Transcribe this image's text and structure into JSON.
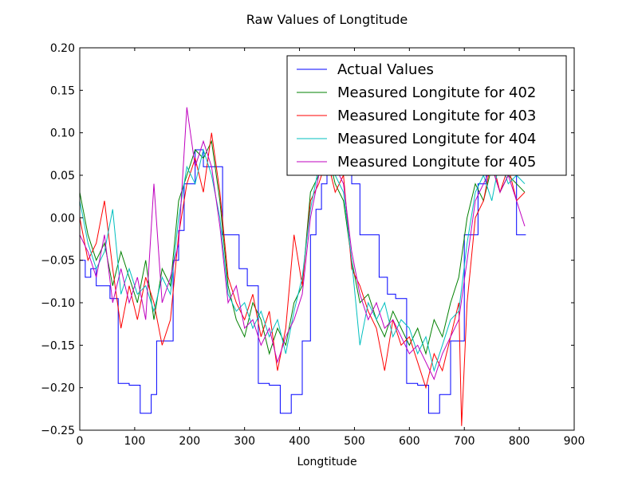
{
  "chart_data": {
    "type": "line",
    "title": "Raw Values of Longtitude",
    "xlabel": "Longtitude",
    "ylabel": "",
    "xlim": [
      0,
      900
    ],
    "ylim": [
      -0.25,
      0.2
    ],
    "xticks": [
      0,
      100,
      200,
      300,
      400,
      500,
      600,
      700,
      800,
      900
    ],
    "yticks": [
      -0.25,
      -0.2,
      -0.15,
      -0.1,
      -0.05,
      0.0,
      0.05,
      0.1,
      0.15,
      0.2
    ],
    "xtick_labels": [
      "0",
      "100",
      "200",
      "300",
      "400",
      "500",
      "600",
      "700",
      "800",
      "900"
    ],
    "ytick_labels": [
      "−0.25",
      "−0.20",
      "−0.15",
      "−0.10",
      "−0.05",
      "0.00",
      "0.05",
      "0.10",
      "0.15",
      "0.20"
    ],
    "grid": false,
    "legend_position": "top-right",
    "series": [
      {
        "name": "Actual Values",
        "color": "#0000ff",
        "style": "step",
        "x": [
          0,
          10,
          20,
          30,
          45,
          55,
          70,
          90,
          110,
          130,
          140,
          155,
          170,
          180,
          190,
          210,
          225,
          250,
          260,
          275,
          290,
          305,
          325,
          345,
          365,
          385,
          405,
          420,
          430,
          440,
          450,
          470,
          495,
          510,
          525,
          545,
          560,
          575,
          595,
          615,
          635,
          655,
          675,
          690,
          700,
          710,
          725,
          740,
          760,
          780,
          795,
          812
        ],
        "y": [
          -0.05,
          -0.07,
          -0.06,
          -0.08,
          -0.08,
          -0.095,
          -0.195,
          -0.197,
          -0.23,
          -0.208,
          -0.145,
          -0.145,
          -0.05,
          -0.015,
          0.04,
          0.08,
          0.06,
          0.06,
          -0.02,
          -0.02,
          -0.06,
          -0.08,
          -0.195,
          -0.197,
          -0.23,
          -0.208,
          -0.145,
          -0.02,
          0.01,
          0.04,
          0.07,
          0.06,
          0.04,
          -0.02,
          -0.02,
          -0.07,
          -0.09,
          -0.095,
          -0.195,
          -0.197,
          -0.23,
          -0.208,
          -0.145,
          -0.145,
          -0.02,
          -0.02,
          0.04,
          0.06,
          0.06,
          0.06,
          -0.02,
          -0.02
        ]
      },
      {
        "name": "Measured Longitute for 402",
        "color": "#008000",
        "style": "line",
        "x": [
          0,
          15,
          30,
          45,
          60,
          75,
          90,
          105,
          120,
          135,
          150,
          165,
          180,
          195,
          210,
          225,
          240,
          255,
          270,
          285,
          300,
          315,
          330,
          345,
          360,
          375,
          390,
          405,
          420,
          435,
          450,
          465,
          480,
          495,
          510,
          525,
          540,
          555,
          570,
          585,
          600,
          615,
          630,
          645,
          660,
          675,
          690,
          705,
          720,
          735,
          750,
          765,
          780,
          795,
          810
        ],
        "y": [
          0.03,
          -0.02,
          -0.05,
          -0.03,
          -0.08,
          -0.04,
          -0.07,
          -0.1,
          -0.05,
          -0.12,
          -0.06,
          -0.08,
          0.02,
          0.05,
          0.08,
          0.07,
          0.09,
          0.02,
          -0.08,
          -0.12,
          -0.14,
          -0.1,
          -0.12,
          -0.16,
          -0.13,
          -0.15,
          -0.1,
          -0.08,
          0.03,
          0.05,
          0.08,
          0.04,
          0.02,
          -0.05,
          -0.1,
          -0.09,
          -0.12,
          -0.14,
          -0.11,
          -0.13,
          -0.15,
          -0.13,
          -0.16,
          -0.12,
          -0.14,
          -0.1,
          -0.07,
          0.0,
          0.04,
          0.02,
          0.06,
          0.03,
          0.05,
          0.04,
          0.03
        ]
      },
      {
        "name": "Measured Longitute for 403",
        "color": "#ff0000",
        "style": "line",
        "x": [
          0,
          15,
          30,
          45,
          60,
          75,
          90,
          105,
          120,
          135,
          150,
          165,
          180,
          195,
          210,
          225,
          240,
          255,
          270,
          285,
          300,
          315,
          330,
          345,
          360,
          375,
          390,
          405,
          420,
          435,
          450,
          465,
          480,
          495,
          510,
          525,
          540,
          555,
          570,
          585,
          600,
          615,
          630,
          645,
          660,
          675,
          690,
          695,
          705,
          720,
          735,
          750,
          765,
          780,
          795,
          810
        ],
        "y": [
          0.0,
          -0.05,
          -0.03,
          0.02,
          -0.06,
          -0.13,
          -0.08,
          -0.12,
          -0.07,
          -0.1,
          -0.15,
          -0.12,
          -0.02,
          0.04,
          0.07,
          0.03,
          0.1,
          0.03,
          -0.07,
          -0.1,
          -0.12,
          -0.09,
          -0.14,
          -0.11,
          -0.18,
          -0.13,
          -0.02,
          -0.08,
          0.02,
          0.04,
          0.07,
          0.03,
          0.05,
          -0.06,
          -0.08,
          -0.11,
          -0.13,
          -0.18,
          -0.12,
          -0.15,
          -0.14,
          -0.17,
          -0.2,
          -0.16,
          -0.18,
          -0.14,
          -0.1,
          -0.245,
          -0.1,
          0.0,
          0.02,
          0.07,
          0.03,
          0.06,
          0.02,
          0.03
        ]
      },
      {
        "name": "Measured Longitute for 404",
        "color": "#00bfbf",
        "style": "line",
        "x": [
          0,
          15,
          30,
          45,
          60,
          75,
          90,
          105,
          120,
          135,
          150,
          165,
          180,
          195,
          210,
          225,
          240,
          255,
          270,
          285,
          300,
          315,
          330,
          345,
          360,
          375,
          390,
          405,
          420,
          435,
          450,
          465,
          480,
          495,
          510,
          525,
          540,
          555,
          570,
          585,
          600,
          615,
          630,
          645,
          660,
          675,
          690,
          705,
          720,
          735,
          750,
          765,
          780,
          795,
          810
        ],
        "y": [
          0.02,
          -0.03,
          -0.06,
          -0.04,
          0.01,
          -0.09,
          -0.06,
          -0.09,
          -0.08,
          -0.11,
          -0.07,
          -0.09,
          0.0,
          0.06,
          0.04,
          0.08,
          0.05,
          0.0,
          -0.09,
          -0.11,
          -0.1,
          -0.13,
          -0.11,
          -0.14,
          -0.12,
          -0.16,
          -0.11,
          -0.07,
          0.01,
          0.06,
          0.09,
          0.05,
          0.03,
          -0.05,
          -0.15,
          -0.1,
          -0.12,
          -0.1,
          -0.14,
          -0.12,
          -0.13,
          -0.16,
          -0.14,
          -0.18,
          -0.15,
          -0.12,
          -0.11,
          -0.03,
          0.03,
          0.05,
          0.02,
          0.07,
          0.04,
          0.05,
          0.04
        ]
      },
      {
        "name": "Measured Longitute for 405",
        "color": "#bf00bf",
        "style": "line",
        "x": [
          0,
          15,
          30,
          45,
          60,
          75,
          90,
          105,
          120,
          135,
          150,
          165,
          180,
          195,
          210,
          225,
          240,
          255,
          270,
          285,
          300,
          315,
          330,
          345,
          360,
          375,
          390,
          405,
          420,
          435,
          450,
          465,
          480,
          495,
          510,
          525,
          540,
          555,
          570,
          585,
          600,
          615,
          630,
          645,
          660,
          675,
          690,
          705,
          720,
          735,
          750,
          765,
          780,
          795,
          810
        ],
        "y": [
          -0.02,
          -0.04,
          -0.07,
          -0.02,
          -0.1,
          -0.06,
          -0.1,
          -0.07,
          -0.12,
          0.04,
          -0.1,
          -0.07,
          -0.03,
          0.13,
          0.06,
          0.09,
          0.06,
          -0.01,
          -0.1,
          -0.08,
          -0.13,
          -0.12,
          -0.15,
          -0.13,
          -0.17,
          -0.14,
          -0.12,
          -0.09,
          0.0,
          0.05,
          0.07,
          0.06,
          0.04,
          -0.04,
          -0.09,
          -0.12,
          -0.1,
          -0.13,
          -0.12,
          -0.14,
          -0.16,
          -0.15,
          -0.17,
          -0.19,
          -0.16,
          -0.14,
          -0.12,
          -0.05,
          0.02,
          0.04,
          0.06,
          0.03,
          0.05,
          0.02,
          -0.01
        ]
      }
    ]
  }
}
